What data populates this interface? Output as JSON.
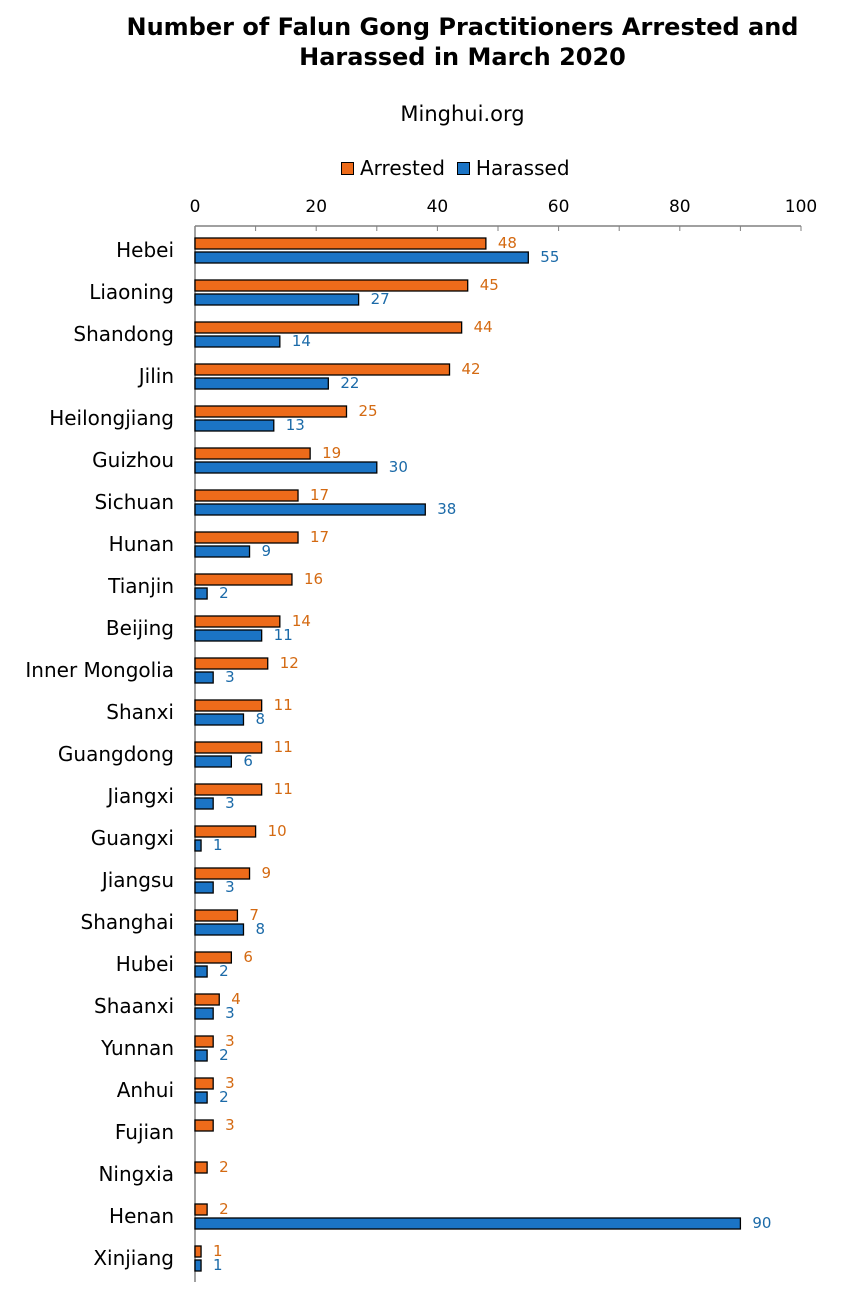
{
  "chart_data": {
    "type": "bar",
    "orientation": "horizontal",
    "title": "Number of Falun Gong Practitioners Arrested and Harassed in March 2020",
    "subtitle": "Minghui.org",
    "xlim": [
      0,
      100
    ],
    "x_ticks": [
      "0",
      "20",
      "40",
      "60",
      "80",
      "100"
    ],
    "x_tick_values": [
      0,
      20,
      40,
      60,
      80,
      100
    ],
    "x_axis_position": "top",
    "legend_placement": "top",
    "grid": false,
    "categories": [
      "Hebei",
      "Liaoning",
      "Shandong",
      "Jilin",
      "Heilongjiang",
      "Guizhou",
      "Sichuan",
      "Hunan",
      "Tianjin",
      "Beijing",
      "Inner Mongolia",
      "Shanxi",
      "Guangdong",
      "Jiangxi",
      "Guangxi",
      "Jiangsu",
      "Shanghai",
      "Hubei",
      "Shaanxi",
      "Yunnan",
      "Anhui",
      "Fujian",
      "Ningxia",
      "Henan",
      "Xinjiang"
    ],
    "series": [
      {
        "name": "Arrested",
        "color": "#ed6b1a",
        "label_color": "#d46a12",
        "values": [
          48,
          45,
          44,
          42,
          25,
          19,
          17,
          17,
          16,
          14,
          12,
          11,
          11,
          11,
          10,
          9,
          7,
          6,
          4,
          3,
          3,
          3,
          2,
          2,
          1
        ]
      },
      {
        "name": "Harassed",
        "color": "#1b74c5",
        "label_color": "#1b6aa8",
        "values": [
          55,
          27,
          14,
          22,
          13,
          30,
          38,
          9,
          2,
          11,
          3,
          8,
          6,
          3,
          1,
          3,
          8,
          2,
          3,
          2,
          2,
          null,
          null,
          90,
          1
        ]
      }
    ]
  }
}
